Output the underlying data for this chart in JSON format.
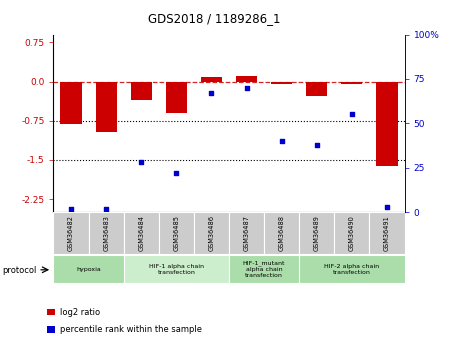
{
  "title": "GDS2018 / 1189286_1",
  "samples": [
    "GSM36482",
    "GSM36483",
    "GSM36484",
    "GSM36485",
    "GSM36486",
    "GSM36487",
    "GSM36488",
    "GSM36489",
    "GSM36490",
    "GSM36491"
  ],
  "log2_ratio": [
    -0.82,
    -0.97,
    -0.35,
    -0.6,
    0.08,
    0.1,
    -0.04,
    -0.27,
    -0.05,
    -1.62
  ],
  "percentile_rank": [
    2,
    2,
    28,
    22,
    67,
    70,
    40,
    38,
    55,
    3
  ],
  "ylim_left": [
    -2.5,
    0.9
  ],
  "ylim_right": [
    0,
    100
  ],
  "yticks_left": [
    0.75,
    0.0,
    -0.75,
    -1.5,
    -2.25
  ],
  "yticks_right": [
    100,
    75,
    50,
    25,
    0
  ],
  "hline_dashed": 0,
  "hlines_dotted": [
    -0.75,
    -1.5
  ],
  "bar_color": "#CC0000",
  "scatter_color": "#0000CC",
  "bar_width": 0.6,
  "groups": [
    {
      "label": "hypoxia",
      "start": 0,
      "end": 1,
      "color": "#aaddaa"
    },
    {
      "label": "HIF-1 alpha chain\ntransfection",
      "start": 2,
      "end": 4,
      "color": "#cceecc"
    },
    {
      "label": "HIF-1_mutant\nalpha chain\ntransfection",
      "start": 5,
      "end": 6,
      "color": "#aaddaa"
    },
    {
      "label": "HIF-2 alpha chain\ntransfection",
      "start": 7,
      "end": 9,
      "color": "#aaddaa"
    }
  ],
  "protocol_label": "protocol",
  "legend_items": [
    {
      "color": "#CC0000",
      "label": "log2 ratio"
    },
    {
      "color": "#0000CC",
      "label": "percentile rank within the sample"
    }
  ],
  "tick_color_left": "#CC0000",
  "tick_color_right": "#0000CC",
  "xtick_bg": "#cccccc",
  "background_plot": "#ffffff",
  "background_fig": "#ffffff"
}
